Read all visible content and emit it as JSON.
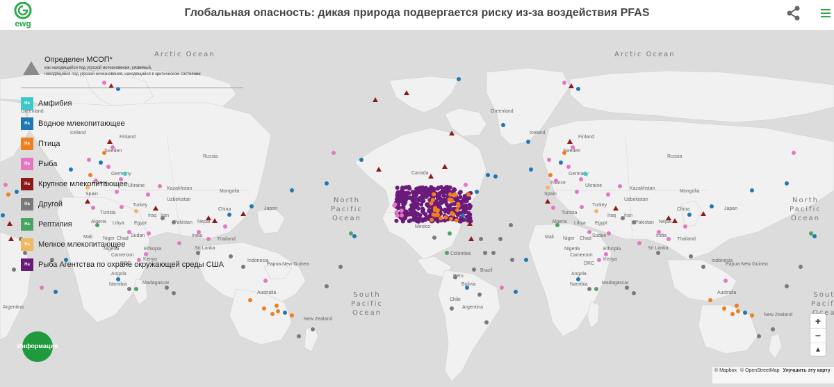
{
  "header": {
    "logo_text": "ewg",
    "title": "Глобальная опасность: дикая природа подвергается риску из-за воздействия PFAS",
    "share_icon": "share-icon",
    "menu_icon": "hamburger-menu-icon"
  },
  "legend": {
    "title": "Определен МСОП*",
    "subtitle_line1": "как находящийся под угрозой исчезновения, уязвимый,",
    "subtitle_line2": "находящийся под угрозой исчезновения, находящийся в критическом состоянии",
    "swatch_text": "Ha",
    "items": [
      {
        "label": "Амфибия",
        "color": "#3dc9c9"
      },
      {
        "label": "Водное млекопитающее",
        "color": "#1f78b4"
      },
      {
        "label": "Птица",
        "color": "#f07f1f"
      },
      {
        "label": "Рыба",
        "color": "#e377c2"
      },
      {
        "label": "Крупное млекопитающее",
        "color": "#8b1a1a"
      },
      {
        "label": "Другой",
        "color": "#7a7a7a"
      },
      {
        "label": "Рептилия",
        "color": "#4aa564"
      },
      {
        "label": "Мелкое млекопитающее",
        "color": "#f0b860"
      },
      {
        "label": "Рыба Агентства по охране окружающей среды США",
        "color": "#6a1b7a"
      }
    ]
  },
  "map": {
    "oceans": [
      {
        "text": "Arctic Ocean"
      },
      {
        "text": "Arctic Ocean"
      },
      {
        "text": "North Pacific Ocean"
      },
      {
        "text": "North Pacific Ocean"
      },
      {
        "text": "South Pacific Ocean"
      },
      {
        "text": "South Pacific Ocean"
      }
    ],
    "countries": [
      "Greenland",
      "Greenland",
      "Canada",
      "Russia",
      "Russia",
      "Kazakhstan",
      "Kazakhstan",
      "Mongolia",
      "Mongolia",
      "China",
      "China",
      "Japan",
      "Japan",
      "Iran",
      "Iran",
      "India",
      "India",
      "Pakistan",
      "Pakistan",
      "Nepal",
      "Nepal",
      "Turkey",
      "Turkey",
      "Ukraine",
      "Ukraine",
      "Uzbekistan",
      "Uzbekistan",
      "Algeria",
      "Algeria",
      "Libya",
      "Libya",
      "Egypt",
      "Egypt",
      "Mali",
      "Mali",
      "Niger",
      "Niger",
      "Chad",
      "Chad",
      "Sudan",
      "Sudan",
      "Ethiopia",
      "Ethiopia",
      "Nigeria",
      "Nigeria",
      "Cameroon",
      "Cameroon",
      "DRC",
      "DRC",
      "Angola",
      "Angola",
      "Namibia",
      "Namibia",
      "Madagascar",
      "Madagascar",
      "Kenya",
      "Kenya",
      "Tunisia",
      "Tunisia",
      "Iraq",
      "Iraq",
      "Thailand",
      "Thailand",
      "Sri Lanka",
      "Sri Lanka",
      "Indonesia",
      "Indonesia",
      "Papua New Guinea",
      "Papua New Guinea",
      "Australia",
      "Australia",
      "New Zealand",
      "New Zealand",
      "Mexico",
      "Colombia",
      "Peru",
      "Brazil",
      "Bolivia",
      "Chile",
      "Argentina",
      "Argentina",
      "Finland",
      "Finland",
      "Sweden",
      "Sweden",
      "Germany",
      "Germany",
      "Spain",
      "Spain",
      "France",
      "France",
      "Iceland",
      "Iceland"
    ]
  },
  "info_button": {
    "label": "Информация"
  },
  "zoom": {
    "plus": "+",
    "minus": "−",
    "north": "▲"
  },
  "attribution": {
    "mapbox": "© Mapbox",
    "osm": "© OpenStreetMap",
    "improve": "Улучшить эту карту"
  },
  "colors": {
    "header_bg": "#ffffff",
    "map_bg": "#dcdcdc",
    "land": "#f1f1f1",
    "brand_green": "#1f9a3c"
  }
}
